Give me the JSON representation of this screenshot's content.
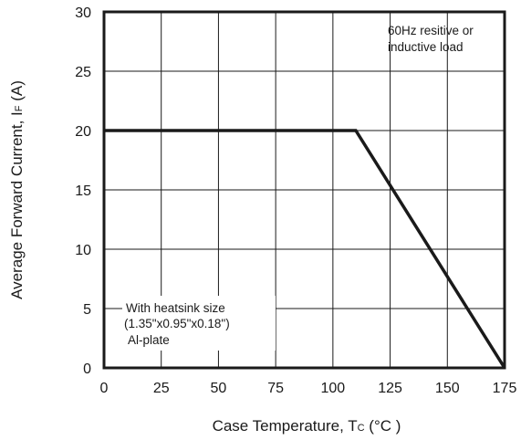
{
  "chart_data": {
    "type": "line",
    "xlabel": {
      "prefix": "Case Temperature, T",
      "sub": "C",
      "suffix": " (°C )"
    },
    "ylabel": {
      "prefix": "Average Forward Current, I",
      "sub": "F",
      "suffix": " (A)"
    },
    "xlim": [
      0,
      175
    ],
    "ylim": [
      0,
      30
    ],
    "xticks": [
      "0",
      "25",
      "50",
      "75",
      "100",
      "125",
      "150",
      "175"
    ],
    "yticks": [
      "0",
      "5",
      "10",
      "15",
      "20",
      "25",
      "30"
    ],
    "grid": true,
    "series": [
      {
        "x": [
          0,
          110,
          175
        ],
        "y": [
          20,
          20,
          0
        ]
      }
    ],
    "annotations": {
      "load": [
        "60Hz resitive or",
        "inductive load"
      ],
      "heatsink": [
        "With heatsink size",
        "(1.35\"x0.95\"x0.18\")",
        "Al-plate"
      ]
    },
    "colors": {
      "line": "#1a1a1a",
      "grid": "#1a1a1a",
      "frame": "#1a1a1a"
    }
  }
}
